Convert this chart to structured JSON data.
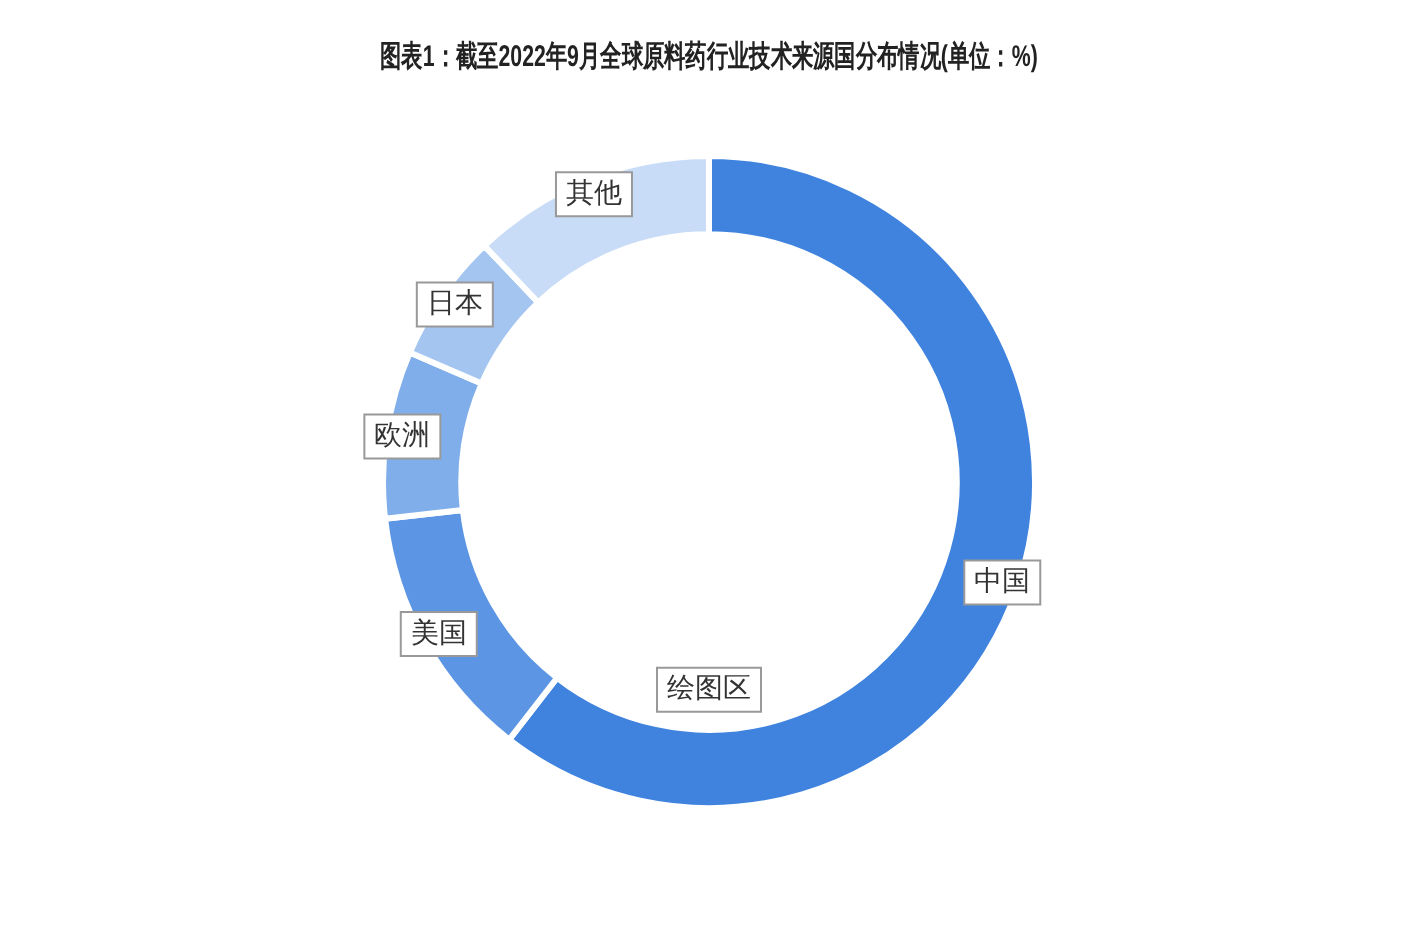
{
  "chart_data": {
    "type": "donut",
    "title": "图表1：截至2022年9月全球原料药行业技术来源国分布情况(单位：%)",
    "categories": [
      "中国",
      "美国",
      "欧洲",
      "日本",
      "其他"
    ],
    "values": [
      60.5,
      12.7,
      8.3,
      6.4,
      12.1
    ],
    "colors": [
      "#3f83df",
      "#5b95e3",
      "#80aeea",
      "#a3c5f0",
      "#c8dcf7"
    ],
    "annotations": [
      "绘图区"
    ],
    "legend": false
  }
}
